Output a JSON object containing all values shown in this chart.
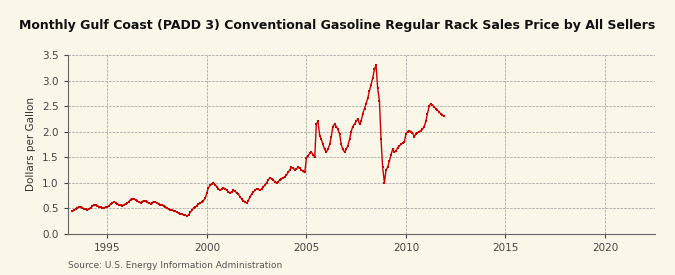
{
  "title": "Monthly Gulf Coast (PADD 3) Conventional Gasoline Regular Rack Sales Price by All Sellers",
  "ylabel": "Dollars per Gallon",
  "source": "Source: U.S. Energy Information Administration",
  "background_color": "#FAF6E8",
  "line_color": "#CC0000",
  "marker": "s",
  "marker_size": 2.0,
  "linewidth": 1.0,
  "xlim_start": 1993.0,
  "xlim_end": 2022.5,
  "ylim": [
    0.0,
    3.5
  ],
  "yticks": [
    0.0,
    0.5,
    1.0,
    1.5,
    2.0,
    2.5,
    3.0,
    3.5
  ],
  "xticks": [
    1995,
    2000,
    2005,
    2010,
    2015,
    2020
  ],
  "data": [
    [
      1993.25,
      0.44
    ],
    [
      1993.33,
      0.46
    ],
    [
      1993.42,
      0.48
    ],
    [
      1993.5,
      0.5
    ],
    [
      1993.58,
      0.52
    ],
    [
      1993.67,
      0.53
    ],
    [
      1993.75,
      0.51
    ],
    [
      1993.83,
      0.49
    ],
    [
      1993.92,
      0.48
    ],
    [
      1994.0,
      0.47
    ],
    [
      1994.08,
      0.49
    ],
    [
      1994.17,
      0.51
    ],
    [
      1994.25,
      0.54
    ],
    [
      1994.33,
      0.57
    ],
    [
      1994.42,
      0.56
    ],
    [
      1994.5,
      0.55
    ],
    [
      1994.58,
      0.53
    ],
    [
      1994.67,
      0.52
    ],
    [
      1994.75,
      0.5
    ],
    [
      1994.83,
      0.51
    ],
    [
      1994.92,
      0.52
    ],
    [
      1995.0,
      0.53
    ],
    [
      1995.08,
      0.55
    ],
    [
      1995.17,
      0.58
    ],
    [
      1995.25,
      0.6
    ],
    [
      1995.33,
      0.62
    ],
    [
      1995.42,
      0.61
    ],
    [
      1995.5,
      0.59
    ],
    [
      1995.58,
      0.57
    ],
    [
      1995.67,
      0.56
    ],
    [
      1995.75,
      0.55
    ],
    [
      1995.83,
      0.57
    ],
    [
      1995.92,
      0.58
    ],
    [
      1996.0,
      0.6
    ],
    [
      1996.08,
      0.63
    ],
    [
      1996.17,
      0.67
    ],
    [
      1996.25,
      0.69
    ],
    [
      1996.33,
      0.68
    ],
    [
      1996.42,
      0.66
    ],
    [
      1996.5,
      0.64
    ],
    [
      1996.58,
      0.62
    ],
    [
      1996.67,
      0.61
    ],
    [
      1996.75,
      0.63
    ],
    [
      1996.83,
      0.65
    ],
    [
      1996.92,
      0.64
    ],
    [
      1997.0,
      0.62
    ],
    [
      1997.08,
      0.6
    ],
    [
      1997.17,
      0.59
    ],
    [
      1997.25,
      0.61
    ],
    [
      1997.33,
      0.63
    ],
    [
      1997.42,
      0.62
    ],
    [
      1997.5,
      0.6
    ],
    [
      1997.58,
      0.58
    ],
    [
      1997.67,
      0.57
    ],
    [
      1997.75,
      0.56
    ],
    [
      1997.83,
      0.55
    ],
    [
      1997.92,
      0.53
    ],
    [
      1998.0,
      0.5
    ],
    [
      1998.08,
      0.48
    ],
    [
      1998.17,
      0.47
    ],
    [
      1998.25,
      0.46
    ],
    [
      1998.33,
      0.45
    ],
    [
      1998.42,
      0.44
    ],
    [
      1998.5,
      0.42
    ],
    [
      1998.58,
      0.4
    ],
    [
      1998.67,
      0.39
    ],
    [
      1998.75,
      0.38
    ],
    [
      1998.83,
      0.37
    ],
    [
      1998.92,
      0.36
    ],
    [
      1999.0,
      0.35
    ],
    [
      1999.08,
      0.37
    ],
    [
      1999.17,
      0.42
    ],
    [
      1999.25,
      0.46
    ],
    [
      1999.33,
      0.5
    ],
    [
      1999.42,
      0.52
    ],
    [
      1999.5,
      0.55
    ],
    [
      1999.58,
      0.58
    ],
    [
      1999.67,
      0.6
    ],
    [
      1999.75,
      0.62
    ],
    [
      1999.83,
      0.65
    ],
    [
      1999.92,
      0.7
    ],
    [
      2000.0,
      0.8
    ],
    [
      2000.08,
      0.9
    ],
    [
      2000.17,
      0.95
    ],
    [
      2000.25,
      0.97
    ],
    [
      2000.33,
      1.0
    ],
    [
      2000.42,
      0.96
    ],
    [
      2000.5,
      0.92
    ],
    [
      2000.58,
      0.88
    ],
    [
      2000.67,
      0.85
    ],
    [
      2000.75,
      0.87
    ],
    [
      2000.83,
      0.9
    ],
    [
      2000.92,
      0.88
    ],
    [
      2001.0,
      0.85
    ],
    [
      2001.08,
      0.82
    ],
    [
      2001.17,
      0.8
    ],
    [
      2001.25,
      0.82
    ],
    [
      2001.33,
      0.85
    ],
    [
      2001.42,
      0.83
    ],
    [
      2001.5,
      0.8
    ],
    [
      2001.58,
      0.78
    ],
    [
      2001.67,
      0.72
    ],
    [
      2001.75,
      0.68
    ],
    [
      2001.83,
      0.65
    ],
    [
      2001.92,
      0.62
    ],
    [
      2002.0,
      0.6
    ],
    [
      2002.08,
      0.65
    ],
    [
      2002.17,
      0.72
    ],
    [
      2002.25,
      0.78
    ],
    [
      2002.33,
      0.82
    ],
    [
      2002.42,
      0.85
    ],
    [
      2002.5,
      0.88
    ],
    [
      2002.58,
      0.87
    ],
    [
      2002.67,
      0.85
    ],
    [
      2002.75,
      0.88
    ],
    [
      2002.83,
      0.92
    ],
    [
      2002.92,
      0.95
    ],
    [
      2003.0,
      1.0
    ],
    [
      2003.08,
      1.05
    ],
    [
      2003.17,
      1.1
    ],
    [
      2003.25,
      1.08
    ],
    [
      2003.33,
      1.05
    ],
    [
      2003.42,
      1.02
    ],
    [
      2003.5,
      1.0
    ],
    [
      2003.58,
      1.02
    ],
    [
      2003.67,
      1.05
    ],
    [
      2003.75,
      1.08
    ],
    [
      2003.83,
      1.1
    ],
    [
      2003.92,
      1.12
    ],
    [
      2004.0,
      1.15
    ],
    [
      2004.08,
      1.2
    ],
    [
      2004.17,
      1.25
    ],
    [
      2004.25,
      1.3
    ],
    [
      2004.33,
      1.28
    ],
    [
      2004.42,
      1.25
    ],
    [
      2004.5,
      1.27
    ],
    [
      2004.58,
      1.3
    ],
    [
      2004.67,
      1.28
    ],
    [
      2004.75,
      1.25
    ],
    [
      2004.83,
      1.22
    ],
    [
      2004.92,
      1.2
    ],
    [
      2005.0,
      1.48
    ],
    [
      2005.08,
      1.52
    ],
    [
      2005.17,
      1.58
    ],
    [
      2005.25,
      1.6
    ],
    [
      2005.33,
      1.55
    ],
    [
      2005.42,
      1.5
    ],
    [
      2005.5,
      2.15
    ],
    [
      2005.58,
      2.2
    ],
    [
      2005.67,
      1.92
    ],
    [
      2005.75,
      1.85
    ],
    [
      2005.83,
      1.75
    ],
    [
      2005.92,
      1.65
    ],
    [
      2006.0,
      1.6
    ],
    [
      2006.08,
      1.65
    ],
    [
      2006.17,
      1.75
    ],
    [
      2006.25,
      1.9
    ],
    [
      2006.33,
      2.1
    ],
    [
      2006.42,
      2.15
    ],
    [
      2006.5,
      2.1
    ],
    [
      2006.58,
      2.05
    ],
    [
      2006.67,
      1.95
    ],
    [
      2006.75,
      1.75
    ],
    [
      2006.83,
      1.65
    ],
    [
      2006.92,
      1.6
    ],
    [
      2007.0,
      1.65
    ],
    [
      2007.08,
      1.72
    ],
    [
      2007.17,
      1.85
    ],
    [
      2007.25,
      2.0
    ],
    [
      2007.33,
      2.1
    ],
    [
      2007.42,
      2.15
    ],
    [
      2007.5,
      2.2
    ],
    [
      2007.58,
      2.25
    ],
    [
      2007.67,
      2.15
    ],
    [
      2007.75,
      2.2
    ],
    [
      2007.83,
      2.35
    ],
    [
      2007.92,
      2.45
    ],
    [
      2008.0,
      2.55
    ],
    [
      2008.08,
      2.65
    ],
    [
      2008.17,
      2.8
    ],
    [
      2008.25,
      2.92
    ],
    [
      2008.33,
      3.05
    ],
    [
      2008.42,
      3.22
    ],
    [
      2008.5,
      3.3
    ],
    [
      2008.58,
      2.85
    ],
    [
      2008.67,
      2.6
    ],
    [
      2008.75,
      1.85
    ],
    [
      2008.83,
      1.3
    ],
    [
      2008.92,
      1.0
    ],
    [
      2009.0,
      1.25
    ],
    [
      2009.08,
      1.3
    ],
    [
      2009.17,
      1.42
    ],
    [
      2009.25,
      1.55
    ],
    [
      2009.33,
      1.65
    ],
    [
      2009.42,
      1.6
    ],
    [
      2009.5,
      1.62
    ],
    [
      2009.58,
      1.68
    ],
    [
      2009.67,
      1.72
    ],
    [
      2009.75,
      1.75
    ],
    [
      2009.83,
      1.78
    ],
    [
      2009.92,
      1.8
    ],
    [
      2010.0,
      1.95
    ],
    [
      2010.08,
      2.0
    ],
    [
      2010.17,
      2.02
    ],
    [
      2010.25,
      2.0
    ],
    [
      2010.33,
      1.98
    ],
    [
      2010.42,
      1.9
    ],
    [
      2010.5,
      1.95
    ],
    [
      2010.58,
      1.98
    ],
    [
      2010.67,
      2.0
    ],
    [
      2010.75,
      2.02
    ],
    [
      2010.83,
      2.05
    ],
    [
      2010.92,
      2.1
    ],
    [
      2011.0,
      2.2
    ],
    [
      2011.08,
      2.35
    ],
    [
      2011.17,
      2.5
    ],
    [
      2011.25,
      2.55
    ],
    [
      2011.33,
      2.52
    ],
    [
      2011.42,
      2.48
    ],
    [
      2011.5,
      2.45
    ],
    [
      2011.58,
      2.42
    ],
    [
      2011.67,
      2.38
    ],
    [
      2011.75,
      2.35
    ],
    [
      2011.83,
      2.32
    ],
    [
      2011.92,
      2.3
    ]
  ]
}
